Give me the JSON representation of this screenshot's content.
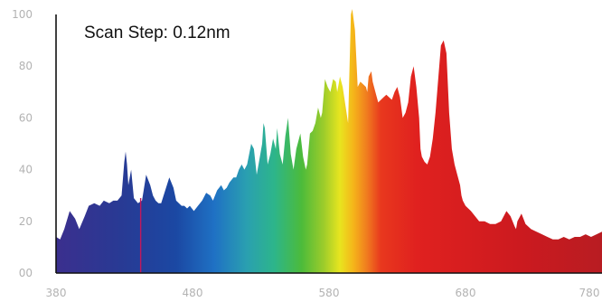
{
  "chart_data": {
    "type": "area",
    "title": "",
    "xlabel": "",
    "ylabel": "",
    "annotation": "Scan Step: 0.12nm",
    "xlim": [
      380,
      780
    ],
    "ylim": [
      0,
      100
    ],
    "x_ticks": [
      {
        "value": 380,
        "label": "380"
      },
      {
        "value": 480,
        "label": "480"
      },
      {
        "value": 580,
        "label": "580"
      },
      {
        "value": 680,
        "label": "680"
      },
      {
        "value": 780,
        "label": "780"
      }
    ],
    "y_ticks": [
      {
        "value": 0,
        "label": "00"
      },
      {
        "value": 20,
        "label": "20"
      },
      {
        "value": 40,
        "label": "40"
      },
      {
        "value": 60,
        "label": "60"
      },
      {
        "value": 80,
        "label": "80"
      },
      {
        "value": 100,
        "label": "100"
      }
    ],
    "grid": false,
    "fill": "visible-spectrum gradient",
    "x": [
      380,
      383,
      386,
      390,
      394,
      397,
      401,
      404,
      408,
      412,
      415,
      419,
      422,
      425,
      428,
      430,
      431,
      432,
      433,
      435,
      437,
      440,
      443,
      446,
      449,
      451,
      453,
      455,
      457,
      460,
      463,
      466,
      468,
      470,
      472,
      474,
      476,
      478,
      481,
      484,
      487,
      490,
      493,
      495,
      498,
      501,
      503,
      505,
      507,
      510,
      512,
      514,
      516,
      518,
      520,
      523,
      525,
      527,
      529,
      531,
      532,
      533,
      535,
      537,
      539,
      541,
      542,
      544,
      546,
      548,
      550,
      552,
      554,
      556,
      557,
      559,
      561,
      563,
      564,
      566,
      568,
      570,
      572,
      574,
      575,
      577,
      579,
      581,
      583,
      585,
      586,
      588,
      590,
      592,
      594,
      596,
      597,
      599,
      601,
      603,
      605,
      607,
      608,
      609,
      611,
      612,
      614,
      616,
      618,
      620,
      622,
      624,
      626,
      628,
      630,
      632,
      634,
      636,
      638,
      640,
      642,
      644,
      646,
      647,
      648,
      650,
      652,
      654,
      656,
      658,
      660,
      662,
      664,
      666,
      668,
      670,
      672,
      674,
      676,
      677,
      678,
      680,
      682,
      684,
      687,
      690,
      694,
      698,
      702,
      706,
      710,
      713,
      716,
      717,
      718,
      721,
      724,
      728,
      732,
      736,
      740,
      744,
      748,
      752,
      756,
      760,
      764,
      768,
      772,
      776,
      780
    ],
    "y": [
      14,
      13,
      17,
      24,
      21,
      17,
      22,
      26,
      27,
      26,
      28,
      27,
      28,
      28,
      30,
      43,
      47,
      42,
      34,
      40,
      29,
      27,
      28,
      38,
      34,
      30,
      28,
      27,
      27,
      32,
      37,
      33,
      28,
      27,
      26,
      26,
      25,
      26,
      24,
      26,
      28,
      31,
      30,
      28,
      32,
      34,
      32,
      33,
      35,
      37,
      37,
      40,
      42,
      40,
      42,
      50,
      48,
      38,
      44,
      50,
      58,
      56,
      42,
      46,
      52,
      48,
      56,
      46,
      42,
      53,
      60,
      46,
      40,
      48,
      50,
      54,
      45,
      40,
      42,
      54,
      55,
      58,
      64,
      60,
      62,
      75,
      72,
      70,
      75,
      74,
      70,
      76,
      72,
      65,
      58,
      100,
      108,
      94,
      72,
      74,
      73,
      72,
      70,
      76,
      78,
      74,
      70,
      66,
      67,
      68,
      69,
      68,
      67,
      70,
      72,
      68,
      60,
      62,
      66,
      76,
      80,
      72,
      60,
      48,
      45,
      43,
      42,
      45,
      52,
      62,
      75,
      88,
      90,
      85,
      62,
      48,
      42,
      38,
      34,
      30,
      28,
      26,
      25,
      24,
      22,
      20,
      20,
      19,
      19,
      20,
      24,
      22,
      18,
      17,
      20,
      23,
      19,
      17,
      16,
      15,
      14,
      13,
      13,
      14,
      13,
      14,
      14,
      15,
      14,
      15,
      16
    ]
  }
}
